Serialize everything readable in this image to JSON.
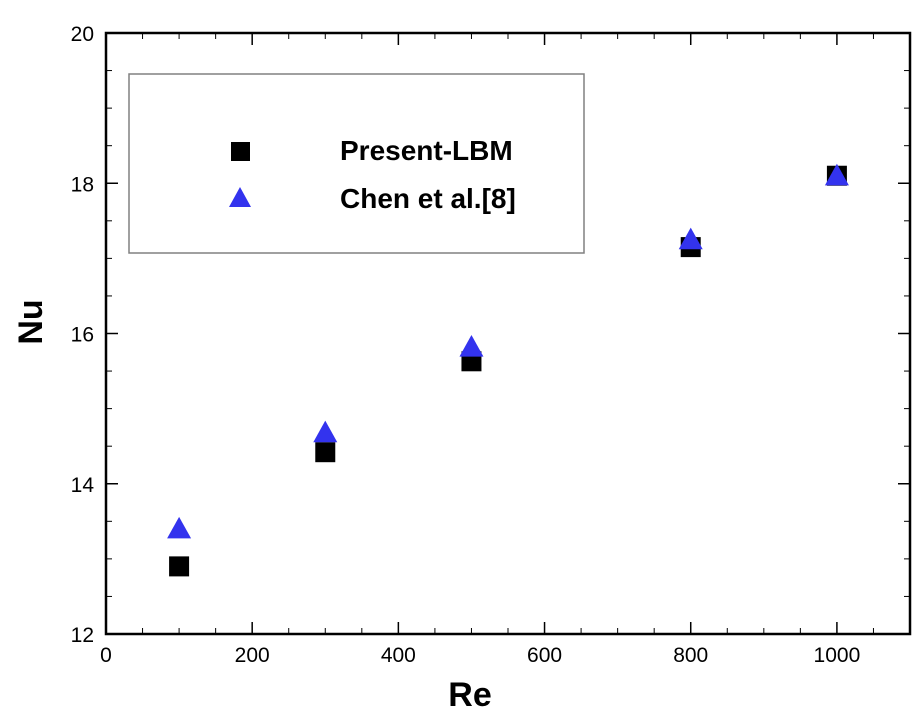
{
  "chart_data": {
    "type": "scatter",
    "xlabel": "Re",
    "ylabel": "Nu",
    "xlim": [
      0,
      1100
    ],
    "ylim": [
      12,
      20
    ],
    "x_ticks": [
      0,
      200,
      400,
      600,
      800,
      1000
    ],
    "y_ticks": [
      12,
      14,
      16,
      18,
      20
    ],
    "x_minor_step": 50,
    "y_minor_step": 0.5,
    "grid": false,
    "legend_position": "top-left",
    "series": [
      {
        "name": "Present-LBM",
        "marker": "square",
        "color": "#000000",
        "points": [
          [
            100,
            12.9
          ],
          [
            300,
            14.42
          ],
          [
            500,
            15.63
          ],
          [
            800,
            17.15
          ],
          [
            1000,
            18.1
          ]
        ]
      },
      {
        "name": "Chen et al.[8]",
        "marker": "triangle",
        "color": "#3333ee",
        "points": [
          [
            100,
            13.4
          ],
          [
            300,
            14.68
          ],
          [
            500,
            15.82
          ],
          [
            800,
            17.25
          ],
          [
            1000,
            18.1
          ]
        ]
      }
    ]
  }
}
